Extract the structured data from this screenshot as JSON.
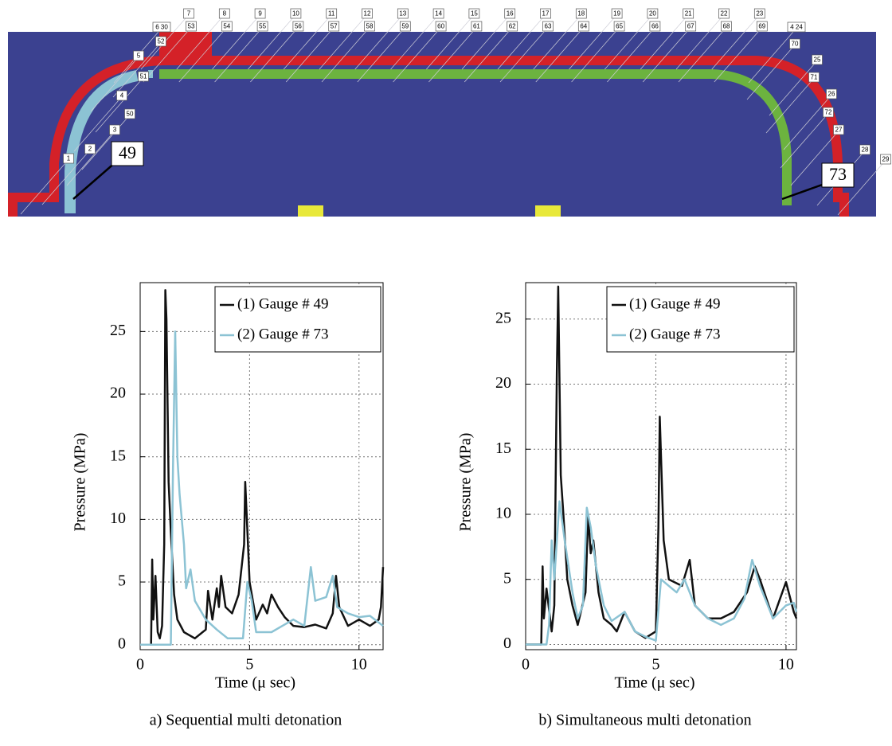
{
  "diagram": {
    "labels": [
      "7",
      "8",
      "9",
      "10",
      "11",
      "12",
      "13",
      "14",
      "15",
      "16",
      "17",
      "18",
      "19",
      "20",
      "21",
      "22",
      "23",
      "53",
      "54",
      "55",
      "56",
      "57",
      "58",
      "59",
      "60",
      "61",
      "62",
      "63",
      "64",
      "65",
      "66",
      "67",
      "68",
      "69",
      "6 30",
      "52",
      "5",
      "51",
      "4",
      "50",
      "3",
      "2",
      "1",
      "4 24",
      "70",
      "25",
      "71",
      "26",
      "72",
      "27",
      "28",
      "29"
    ],
    "gauges": [
      "49",
      "73"
    ]
  },
  "chart_data": [
    {
      "type": "line",
      "caption": "a) Sequential multi detonation",
      "xlabel": "Time (μ sec)",
      "ylabel": "Pressure (MPa)",
      "xlim": [
        0,
        11.1
      ],
      "ylim": [
        -0.4,
        28.9
      ],
      "xticks": [
        0,
        5,
        10
      ],
      "yticks": [
        0,
        5,
        10,
        15,
        20,
        25
      ],
      "grid": true,
      "legend": "upper right",
      "series": [
        {
          "name": "(1) Gauge # 49",
          "color": "#111111",
          "x": [
            0.5,
            0.55,
            0.6,
            0.7,
            0.8,
            0.9,
            1.0,
            1.1,
            1.15,
            1.2,
            1.3,
            1.4,
            1.55,
            1.7,
            2.0,
            2.5,
            3.0,
            3.1,
            3.3,
            3.5,
            3.6,
            3.7,
            3.9,
            4.2,
            4.5,
            4.75,
            4.8,
            4.85,
            5.0,
            5.3,
            5.6,
            5.8,
            6.0,
            6.3,
            6.6,
            7.0,
            7.5,
            8.0,
            8.5,
            8.8,
            8.95,
            9.1,
            9.5,
            10.0,
            10.5,
            10.9,
            11.0,
            11.1
          ],
          "values": [
            0,
            6.8,
            2,
            5.5,
            1,
            0.5,
            1.5,
            8,
            28.3,
            26,
            13,
            9,
            4,
            2,
            1,
            0.5,
            1.2,
            4.3,
            2,
            4.5,
            3,
            5.5,
            3,
            2.5,
            4,
            8,
            13,
            11,
            5,
            2,
            3.2,
            2.5,
            4,
            3,
            2.2,
            1.5,
            1.4,
            1.6,
            1.3,
            2.5,
            5.5,
            3,
            1.5,
            2,
            1.5,
            2,
            3,
            6.2
          ]
        },
        {
          "name": "(2) Gauge # 73",
          "color": "#8cc3d4",
          "x": [
            0,
            1.4,
            1.5,
            1.6,
            1.7,
            1.8,
            2.0,
            2.1,
            2.3,
            2.5,
            3.0,
            3.5,
            4.0,
            4.7,
            4.9,
            5.1,
            5.3,
            6.0,
            6.5,
            7.0,
            7.5,
            7.8,
            8.0,
            8.5,
            8.8,
            9.0,
            9.5,
            10.0,
            10.5,
            11.1
          ],
          "values": [
            0,
            0,
            14,
            25,
            15,
            12,
            8,
            4.5,
            6,
            3.5,
            2,
            1.2,
            0.5,
            0.5,
            5,
            3.5,
            1,
            1,
            1.5,
            2,
            1.5,
            6.2,
            3.5,
            3.8,
            5.5,
            3,
            2.5,
            2.2,
            2.3,
            1.5
          ]
        }
      ]
    },
    {
      "type": "line",
      "caption": "b) Simultaneous multi detonation",
      "xlabel": "Time (μ sec)",
      "ylabel": "Pressure (MPa)",
      "xlim": [
        0,
        10.4
      ],
      "ylim": [
        -0.4,
        27.8
      ],
      "xticks": [
        0,
        5,
        10
      ],
      "yticks": [
        0,
        5,
        10,
        15,
        20,
        25
      ],
      "grid": true,
      "legend": "upper right",
      "series": [
        {
          "name": "(1) Gauge # 49",
          "color": "#111111",
          "x": [
            0,
            0.6,
            0.65,
            0.7,
            0.8,
            1.0,
            1.1,
            1.2,
            1.25,
            1.35,
            1.45,
            1.6,
            1.8,
            2.0,
            2.3,
            2.4,
            2.5,
            2.6,
            2.8,
            3.0,
            3.3,
            3.5,
            3.8,
            4.2,
            4.6,
            5.0,
            5.1,
            5.15,
            5.3,
            5.5,
            6.0,
            6.3,
            6.5,
            7.0,
            7.5,
            8.0,
            8.5,
            8.8,
            9.0,
            9.5,
            10.0,
            10.3,
            10.4
          ],
          "values": [
            0,
            0,
            6,
            2,
            4.3,
            1,
            3,
            21,
            27.5,
            13,
            10,
            5,
            3,
            1.5,
            4,
            10,
            7,
            8,
            4,
            2,
            1.5,
            1,
            2.5,
            1,
            0.5,
            1,
            9,
            17.5,
            8,
            5,
            4.5,
            6.5,
            3,
            2,
            2,
            2.5,
            4,
            6,
            5,
            2,
            4.8,
            2.5,
            2
          ]
        },
        {
          "name": "(2) Gauge # 73",
          "color": "#8cc3d4",
          "x": [
            0,
            0.8,
            0.9,
            1.0,
            1.1,
            1.3,
            1.5,
            1.8,
            2.0,
            2.2,
            2.35,
            2.5,
            2.7,
            3.0,
            3.3,
            3.8,
            4.2,
            4.6,
            5.0,
            5.2,
            5.5,
            5.8,
            6.1,
            6.5,
            7.0,
            7.5,
            8.0,
            8.4,
            8.7,
            9.0,
            9.5,
            10.0,
            10.3,
            10.4
          ],
          "values": [
            0,
            0,
            1.5,
            8,
            5,
            11,
            8,
            4,
            2,
            3,
            10.5,
            9,
            6,
            3,
            1.8,
            2.5,
            1,
            0.6,
            0.3,
            5,
            4.5,
            4,
            5,
            3,
            2,
            1.5,
            2,
            3.5,
            6.5,
            4.5,
            2,
            3,
            3.2,
            2.5
          ]
        }
      ]
    }
  ]
}
